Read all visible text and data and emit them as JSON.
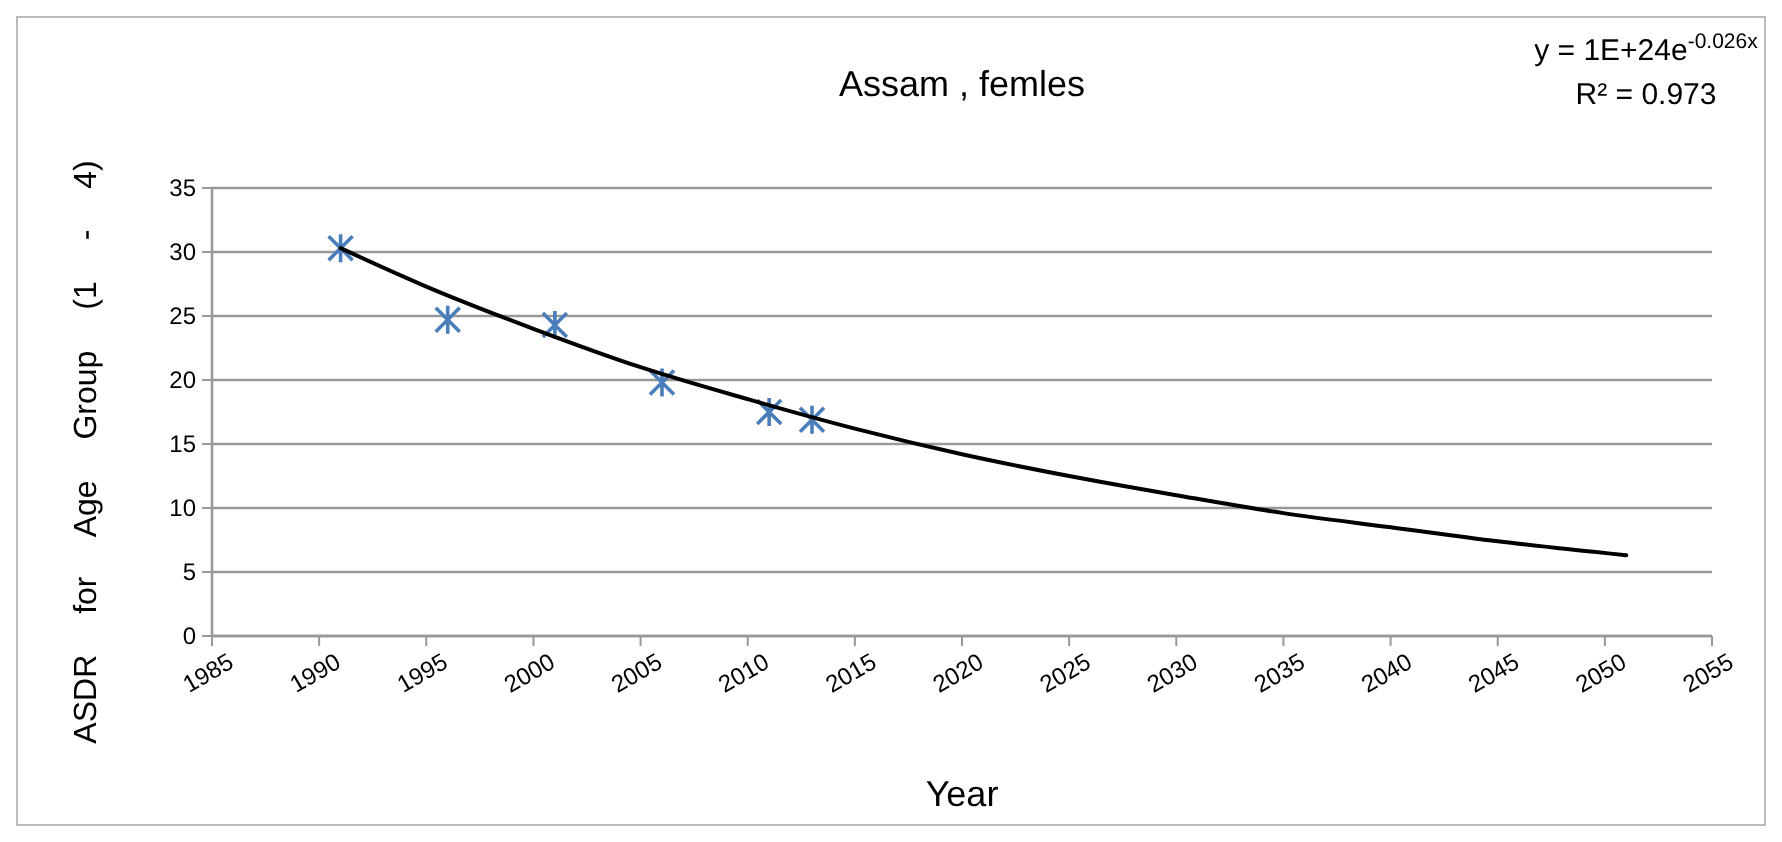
{
  "chart_data": {
    "type": "scatter",
    "title": "Assam , femles",
    "xlabel": "Year",
    "ylabel": "ASDR for Age Group (1 - 4)",
    "annotations": [
      "y = 1E+24e$^{-0.026x}$",
      "R² = 0.973"
    ],
    "xlim": [
      1985,
      2055
    ],
    "xticks": [
      1985,
      1990,
      1995,
      2000,
      2005,
      2010,
      2015,
      2020,
      2025,
      2030,
      2035,
      2040,
      2045,
      2050,
      2055
    ],
    "ylim": [
      0,
      35
    ],
    "yticks": [
      0,
      5,
      10,
      15,
      20,
      25,
      30,
      35
    ],
    "grid": "y",
    "series": [
      {
        "color": "#4a7ebb",
        "marker": "cross",
        "x": [
          1991,
          1996,
          2001,
          2006,
          2011,
          2013
        ],
        "values": [
          30.3,
          24.7,
          24.3,
          19.8,
          17.5,
          16.9
        ]
      },
      {
        "type": "line",
        "color": "#000000",
        "marker": "none",
        "line_style": "solid",
        "x": [
          1991,
          1995,
          2000,
          2005,
          2010,
          2015,
          2020,
          2025,
          2030,
          2035,
          2040,
          2045,
          2051
        ],
        "values": [
          30.3,
          27.3,
          24.0,
          21.0,
          18.5,
          16.2,
          14.2,
          12.5,
          11.0,
          9.6,
          8.5,
          7.4,
          6.3
        ]
      }
    ]
  }
}
